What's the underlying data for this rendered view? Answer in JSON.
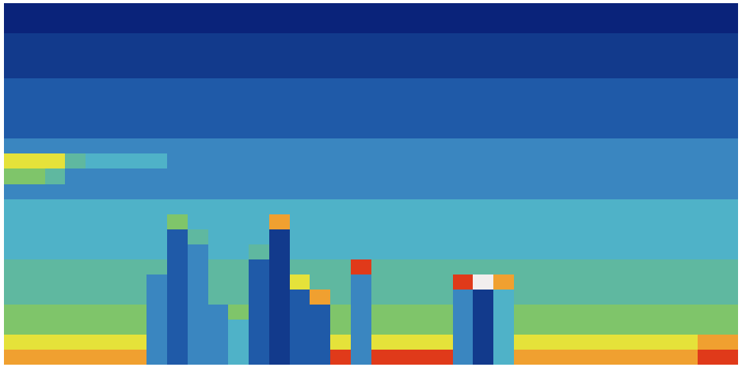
{
  "chart_data": {
    "type": "heatmap",
    "tick_labels": false,
    "zlim": [
      0,
      10
    ],
    "cells": [
      [
        0,
        0,
        0,
        0,
        0,
        0,
        0,
        0,
        0,
        0,
        0,
        0,
        0,
        0,
        0,
        0,
        0,
        0,
        0,
        0,
        0,
        0,
        0,
        0,
        0,
        0,
        0,
        0,
        0,
        0,
        0,
        0,
        0,
        0,
        0,
        0
      ],
      [
        0,
        0,
        0,
        0,
        0,
        0,
        0,
        0,
        0,
        0,
        0,
        0,
        0,
        0,
        0,
        0,
        0,
        0,
        0,
        0,
        0,
        0,
        0,
        0,
        0,
        0,
        0,
        0,
        0,
        0,
        0,
        0,
        0,
        0,
        0,
        0
      ],
      [
        1,
        1,
        1,
        1,
        1,
        1,
        1,
        1,
        1,
        1,
        1,
        1,
        1,
        1,
        1,
        1,
        1,
        1,
        1,
        1,
        1,
        1,
        1,
        1,
        1,
        1,
        1,
        1,
        1,
        1,
        1,
        1,
        1,
        1,
        1,
        1
      ],
      [
        1,
        1,
        1,
        1,
        1,
        1,
        1,
        1,
        1,
        1,
        1,
        1,
        1,
        1,
        1,
        1,
        1,
        1,
        1,
        1,
        1,
        1,
        1,
        1,
        1,
        1,
        1,
        1,
        1,
        1,
        1,
        1,
        1,
        1,
        1,
        1
      ],
      [
        1,
        1,
        1,
        1,
        1,
        1,
        1,
        1,
        1,
        1,
        1,
        1,
        1,
        1,
        1,
        1,
        1,
        1,
        1,
        1,
        1,
        1,
        1,
        1,
        1,
        1,
        1,
        1,
        1,
        1,
        1,
        1,
        1,
        1,
        1,
        1
      ],
      [
        2,
        2,
        2,
        2,
        2,
        2,
        2,
        2,
        2,
        2,
        2,
        2,
        2,
        2,
        2,
        2,
        2,
        2,
        2,
        2,
        2,
        2,
        2,
        2,
        2,
        2,
        2,
        2,
        2,
        2,
        2,
        2,
        2,
        2,
        2,
        2
      ],
      [
        2,
        2,
        2,
        2,
        2,
        2,
        2,
        2,
        2,
        2,
        2,
        2,
        2,
        2,
        2,
        2,
        2,
        2,
        2,
        2,
        2,
        2,
        2,
        2,
        2,
        2,
        2,
        2,
        2,
        2,
        2,
        2,
        2,
        2,
        2,
        2
      ],
      [
        2,
        2,
        2,
        2,
        2,
        2,
        2,
        2,
        2,
        2,
        2,
        2,
        2,
        2,
        2,
        2,
        2,
        2,
        2,
        2,
        2,
        2,
        2,
        2,
        2,
        2,
        2,
        2,
        2,
        2,
        2,
        2,
        2,
        2,
        2,
        2
      ],
      [
        2,
        2,
        2,
        2,
        2,
        2,
        2,
        2,
        2,
        2,
        2,
        2,
        2,
        2,
        2,
        2,
        2,
        2,
        2,
        2,
        2,
        2,
        2,
        2,
        2,
        2,
        2,
        2,
        2,
        2,
        2,
        2,
        2,
        2,
        2,
        2
      ],
      [
        3,
        3,
        3,
        3,
        3,
        3,
        3,
        3,
        3,
        3,
        3,
        3,
        3,
        3,
        3,
        3,
        3,
        3,
        3,
        3,
        3,
        3,
        3,
        3,
        3,
        3,
        3,
        3,
        3,
        3,
        3,
        3,
        3,
        3,
        3,
        3
      ],
      [
        7,
        7,
        7,
        5,
        4,
        4,
        4,
        4,
        3,
        3,
        3,
        3,
        3,
        3,
        3,
        3,
        3,
        3,
        3,
        3,
        3,
        3,
        3,
        3,
        3,
        3,
        3,
        3,
        3,
        3,
        3,
        3,
        3,
        3,
        3,
        3
      ],
      [
        6,
        6,
        5,
        3,
        3,
        3,
        3,
        3,
        3,
        3,
        3,
        3,
        3,
        3,
        3,
        3,
        3,
        3,
        3,
        3,
        3,
        3,
        3,
        3,
        3,
        3,
        3,
        3,
        3,
        3,
        3,
        3,
        3,
        3,
        3,
        3
      ],
      [
        3,
        3,
        3,
        3,
        3,
        3,
        3,
        3,
        3,
        3,
        3,
        3,
        3,
        3,
        3,
        3,
        3,
        3,
        3,
        3,
        3,
        3,
        3,
        3,
        3,
        3,
        3,
        3,
        3,
        3,
        3,
        3,
        3,
        3,
        3,
        3
      ],
      [
        4,
        4,
        4,
        4,
        4,
        4,
        4,
        4,
        4,
        4,
        4,
        4,
        4,
        4,
        4,
        4,
        4,
        4,
        4,
        4,
        4,
        4,
        4,
        4,
        4,
        4,
        4,
        4,
        4,
        4,
        4,
        4,
        4,
        4,
        4,
        4
      ],
      [
        4,
        4,
        4,
        4,
        4,
        4,
        4,
        4,
        6,
        4,
        4,
        4,
        4,
        8,
        4,
        4,
        4,
        4,
        4,
        4,
        4,
        4,
        4,
        4,
        4,
        4,
        4,
        4,
        4,
        4,
        4,
        4,
        4,
        4,
        4,
        4
      ],
      [
        4,
        4,
        4,
        4,
        4,
        4,
        4,
        4,
        2,
        5,
        4,
        4,
        4,
        1,
        4,
        4,
        4,
        4,
        4,
        4,
        4,
        4,
        4,
        4,
        4,
        4,
        4,
        4,
        4,
        4,
        4,
        4,
        4,
        4,
        4,
        4
      ],
      [
        4,
        4,
        4,
        4,
        4,
        4,
        4,
        4,
        2,
        3,
        4,
        4,
        5,
        1,
        4,
        4,
        4,
        4,
        4,
        4,
        4,
        4,
        4,
        4,
        4,
        4,
        4,
        4,
        4,
        4,
        4,
        4,
        4,
        4,
        4,
        4
      ],
      [
        5,
        5,
        5,
        5,
        5,
        5,
        5,
        5,
        2,
        3,
        5,
        5,
        2,
        1,
        5,
        5,
        5,
        9,
        5,
        5,
        5,
        5,
        5,
        5,
        5,
        5,
        5,
        5,
        5,
        5,
        5,
        5,
        5,
        5,
        5,
        5
      ],
      [
        5,
        5,
        5,
        5,
        5,
        5,
        5,
        3,
        2,
        3,
        5,
        5,
        2,
        1,
        7,
        5,
        5,
        3,
        5,
        5,
        5,
        5,
        9,
        10,
        8,
        5,
        5,
        5,
        5,
        5,
        5,
        5,
        5,
        5,
        5,
        5
      ],
      [
        5,
        5,
        5,
        5,
        5,
        5,
        5,
        3,
        2,
        3,
        5,
        5,
        2,
        1,
        2,
        8,
        5,
        3,
        5,
        5,
        5,
        5,
        3,
        1,
        4,
        5,
        5,
        5,
        5,
        5,
        5,
        5,
        5,
        5,
        5,
        5
      ],
      [
        6,
        6,
        6,
        6,
        6,
        6,
        6,
        3,
        2,
        3,
        3,
        6,
        2,
        1,
        2,
        2,
        6,
        3,
        6,
        6,
        6,
        6,
        3,
        1,
        4,
        6,
        6,
        6,
        6,
        6,
        6,
        6,
        6,
        6,
        6,
        6
      ],
      [
        6,
        6,
        6,
        6,
        6,
        6,
        6,
        3,
        2,
        3,
        3,
        4,
        2,
        1,
        2,
        2,
        6,
        3,
        6,
        6,
        6,
        6,
        3,
        1,
        4,
        6,
        6,
        6,
        6,
        6,
        6,
        6,
        6,
        6,
        6,
        6
      ],
      [
        7,
        7,
        7,
        7,
        7,
        7,
        7,
        3,
        2,
        3,
        3,
        4,
        2,
        1,
        2,
        2,
        7,
        3,
        7,
        7,
        7,
        7,
        3,
        1,
        4,
        7,
        7,
        7,
        7,
        7,
        7,
        7,
        7,
        7,
        8,
        8
      ],
      [
        8,
        8,
        8,
        8,
        8,
        8,
        8,
        3,
        2,
        3,
        3,
        4,
        2,
        1,
        2,
        2,
        9,
        3,
        9,
        9,
        9,
        9,
        3,
        1,
        4,
        8,
        8,
        8,
        8,
        8,
        8,
        8,
        8,
        8,
        9,
        9
      ]
    ]
  }
}
